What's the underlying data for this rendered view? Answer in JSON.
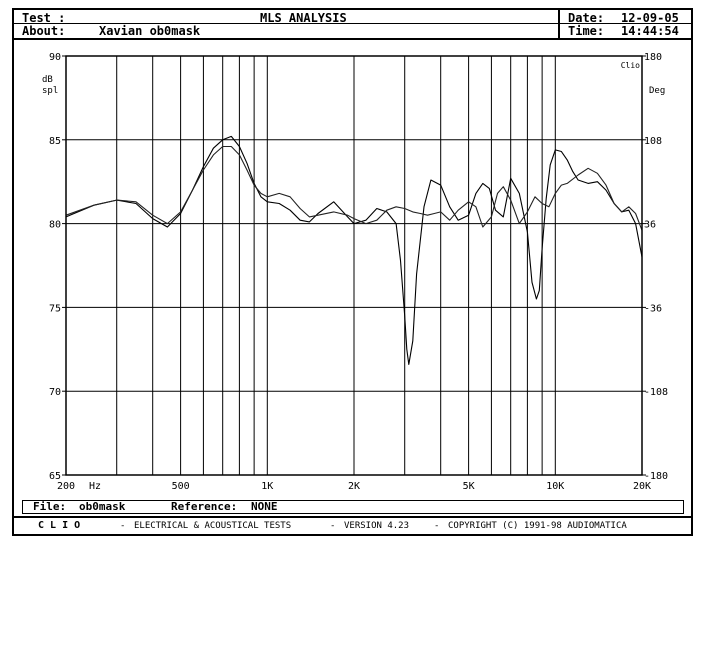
{
  "header": {
    "test_label": "Test :",
    "title": "MLS ANALYSIS",
    "about_label": "About:",
    "about_value": "Xavian ob0mask",
    "date_label": "Date:",
    "date_value": "12-09-05",
    "time_label": "Time:",
    "time_value": "14:44:54"
  },
  "footer": {
    "file_label": "File:",
    "file_value": "ob0mask",
    "reference_label": "Reference:",
    "reference_value": "NONE"
  },
  "bottom": {
    "brand": "C L I O",
    "dash": "-",
    "tests": "ELECTRICAL & ACOUSTICAL TESTS",
    "version": "VERSION 4.23",
    "copyright": "COPYRIGHT (C) 1991-98 AUDIOMATICA"
  },
  "chart_data": {
    "type": "line",
    "xscale": "log",
    "xlim": [
      200,
      20000
    ],
    "ylim": [
      65,
      90
    ],
    "y2lim": [
      -180,
      180
    ],
    "grid": true,
    "ylabel": "dB spl",
    "y2label": "Deg",
    "xunit": "Hz",
    "corner_label": "Clio",
    "x_tick_labels": [
      {
        "value": 200,
        "label": "200"
      },
      {
        "value": 500,
        "label": "500"
      },
      {
        "value": 1000,
        "label": "1K"
      },
      {
        "value": 2000,
        "label": "2K"
      },
      {
        "value": 5000,
        "label": "5K"
      },
      {
        "value": 10000,
        "label": "10K"
      },
      {
        "value": 20000,
        "label": "20K"
      }
    ],
    "x_gridlines": [
      300,
      400,
      500,
      600,
      700,
      800,
      900,
      1000,
      2000,
      3000,
      4000,
      5000,
      6000,
      7000,
      8000,
      9000,
      10000
    ],
    "y_ticks": [
      {
        "value": 90,
        "label": "90"
      },
      {
        "value": 85,
        "label": "85"
      },
      {
        "value": 80,
        "label": "80"
      },
      {
        "value": 75,
        "label": "75"
      },
      {
        "value": 70,
        "label": "70"
      },
      {
        "value": 65,
        "label": "65"
      }
    ],
    "y2_ticks": [
      {
        "value": 180,
        "label": "180"
      },
      {
        "value": 108,
        "label": "108"
      },
      {
        "value": 36,
        "label": "36"
      },
      {
        "value": -36,
        "label": "-36"
      },
      {
        "value": -108,
        "label": "-108"
      },
      {
        "value": -180,
        "label": "-180"
      }
    ],
    "series": [
      {
        "x": [
          200,
          250,
          300,
          350,
          400,
          450,
          500,
          550,
          600,
          650,
          700,
          750,
          800,
          850,
          900,
          950,
          1000,
          1100,
          1200,
          1300,
          1400,
          1500,
          1700,
          1900,
          2000,
          2200,
          2400,
          2600,
          2800,
          2900,
          3000,
          3050,
          3100,
          3200,
          3300,
          3500,
          3700,
          4000,
          4300,
          4600,
          5000,
          5300,
          5600,
          5900,
          6200,
          6600,
          7000,
          7500,
          8000,
          8300,
          8600,
          8800,
          9000,
          9300,
          9600,
          10000,
          10500,
          11000,
          11500,
          12000,
          13000,
          14000,
          15000,
          16000,
          17000,
          18000,
          19000,
          20000
        ],
        "values": [
          80.4,
          81.1,
          81.4,
          81.2,
          80.3,
          79.8,
          80.6,
          82.0,
          83.4,
          84.5,
          85.0,
          85.2,
          84.6,
          83.6,
          82.4,
          81.6,
          81.3,
          81.2,
          80.8,
          80.2,
          80.1,
          80.6,
          81.3,
          80.4,
          80.0,
          80.2,
          80.9,
          80.7,
          80.0,
          77.8,
          74.5,
          72.5,
          71.6,
          73.0,
          77.0,
          81.0,
          82.6,
          82.3,
          81.0,
          80.2,
          80.5,
          81.8,
          82.4,
          82.1,
          80.8,
          80.4,
          82.7,
          81.8,
          79.5,
          76.5,
          75.5,
          76.0,
          78.5,
          81.5,
          83.5,
          84.4,
          84.3,
          83.8,
          83.1,
          82.6,
          82.4,
          82.5,
          82.0,
          81.2,
          80.7,
          80.8,
          80.0,
          78.0
        ]
      },
      {
        "x": [
          200,
          250,
          300,
          350,
          400,
          450,
          500,
          550,
          600,
          650,
          700,
          750,
          800,
          850,
          900,
          950,
          1000,
          1100,
          1200,
          1300,
          1400,
          1500,
          1700,
          1900,
          2000,
          2200,
          2400,
          2600,
          2800,
          3000,
          3200,
          3400,
          3600,
          3800,
          4000,
          4300,
          4600,
          5000,
          5300,
          5600,
          6000,
          6300,
          6600,
          7000,
          7500,
          8000,
          8500,
          9000,
          9500,
          10000,
          10500,
          11000,
          12000,
          13000,
          14000,
          15000,
          16000,
          17000,
          18000,
          19000,
          20000
        ],
        "values": [
          80.5,
          81.1,
          81.4,
          81.3,
          80.5,
          80.0,
          80.7,
          82.0,
          83.2,
          84.1,
          84.6,
          84.6,
          84.1,
          83.2,
          82.3,
          81.8,
          81.6,
          81.8,
          81.6,
          80.9,
          80.4,
          80.5,
          80.7,
          80.5,
          80.3,
          80.0,
          80.2,
          80.8,
          81.0,
          80.9,
          80.7,
          80.6,
          80.5,
          80.6,
          80.7,
          80.2,
          80.8,
          81.3,
          81.0,
          79.8,
          80.4,
          81.8,
          82.2,
          81.4,
          80.0,
          80.7,
          81.6,
          81.2,
          81.0,
          81.8,
          82.3,
          82.4,
          82.9,
          83.3,
          83.0,
          82.3,
          81.2,
          80.7,
          81.0,
          80.6,
          79.6
        ]
      }
    ]
  }
}
